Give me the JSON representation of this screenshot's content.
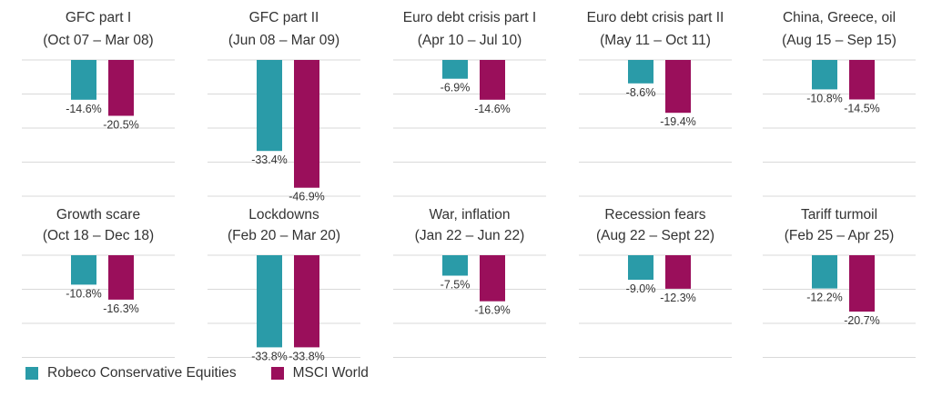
{
  "chart_data": {
    "type": "bar",
    "colors": {
      "robeco": "#2A9BA8",
      "msci": "#9A0F5B",
      "grid": "#D9D9D9",
      "text": "#333333"
    },
    "series_names": [
      "Robeco Conservative Equities",
      "MSCI World"
    ],
    "ylim": [
      -50,
      0
    ],
    "panels": [
      {
        "title": "GFC part I",
        "period": "(Oct 07 – Mar 08)",
        "values": [
          -14.6,
          -20.5
        ],
        "labels": [
          "-14.6%",
          "-20.5%"
        ]
      },
      {
        "title": "GFC part II",
        "period": "(Jun 08 – Mar 09)",
        "values": [
          -33.4,
          -46.9
        ],
        "labels": [
          "-33.4%",
          "-46.9%"
        ]
      },
      {
        "title": "Euro debt crisis part I",
        "period": "(Apr 10 – Jul 10)",
        "values": [
          -6.9,
          -14.6
        ],
        "labels": [
          "-6.9%",
          "-14.6%"
        ]
      },
      {
        "title": "Euro debt crisis part II",
        "period": "(May 11 – Oct 11)",
        "values": [
          -8.6,
          -19.4
        ],
        "labels": [
          "-8.6%",
          "-19.4%"
        ]
      },
      {
        "title": "China, Greece, oil",
        "period": "(Aug 15 – Sep 15)",
        "values": [
          -10.8,
          -14.5
        ],
        "labels": [
          "-10.8%",
          "-14.5%"
        ]
      },
      {
        "title": "Growth scare",
        "period": "(Oct 18 – Dec 18)",
        "values": [
          -10.8,
          -16.3
        ],
        "labels": [
          "-10.8%",
          "-16.3%"
        ]
      },
      {
        "title": "Lockdowns",
        "period": "(Feb 20 – Mar 20)",
        "values": [
          -33.8,
          -33.8
        ],
        "labels": [
          "-33.8%",
          "-33.8%"
        ]
      },
      {
        "title": "War, inflation",
        "period": "(Jan 22 – Jun 22)",
        "values": [
          -7.5,
          -16.9
        ],
        "labels": [
          "-7.5%",
          "-16.9%"
        ]
      },
      {
        "title": "Recession fears",
        "period": "(Aug 22 – Sept 22)",
        "values": [
          -9.0,
          -12.3
        ],
        "labels": [
          "-9.0%",
          "-12.3%"
        ]
      },
      {
        "title": "Tariff turmoil",
        "period": "(Feb 25 – Apr 25)",
        "values": [
          -12.2,
          -20.7
        ],
        "labels": [
          "-12.2%",
          "-20.7%"
        ]
      }
    ]
  },
  "legend": {
    "items": [
      {
        "label": "Robeco Conservative Equities"
      },
      {
        "label": "MSCI World"
      }
    ]
  }
}
